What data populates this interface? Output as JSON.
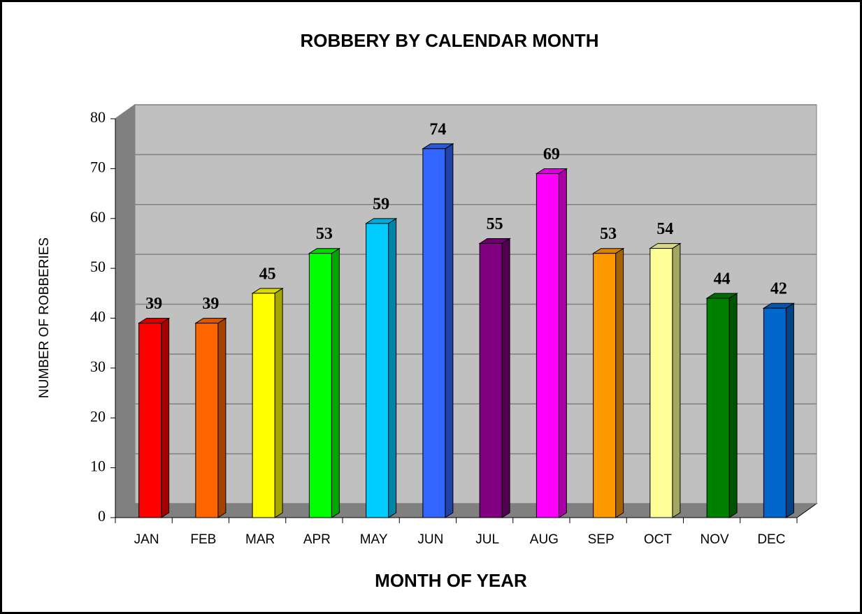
{
  "chart_data": {
    "type": "bar3d",
    "title": "ROBBERY BY CALENDAR MONTH",
    "x_label": "MONTH OF YEAR",
    "y_label": "NUMBER OF ROBBERIES",
    "categories": [
      "JAN",
      "FEB",
      "MAR",
      "APR",
      "MAY",
      "JUN",
      "JUL",
      "AUG",
      "SEP",
      "OCT",
      "NOV",
      "DEC"
    ],
    "values": [
      39,
      39,
      45,
      53,
      59,
      74,
      55,
      69,
      53,
      54,
      44,
      42
    ],
    "colors": [
      "#ff0000",
      "#ff6600",
      "#ffff00",
      "#00ff00",
      "#00ccff",
      "#3366ff",
      "#800080",
      "#ff00ff",
      "#ff9900",
      "#ffff99",
      "#008000",
      "#0066cc"
    ],
    "ylim": [
      0,
      80
    ],
    "yticks": [
      0,
      10,
      20,
      30,
      40,
      50,
      60,
      70,
      80
    ],
    "grid": true
  }
}
